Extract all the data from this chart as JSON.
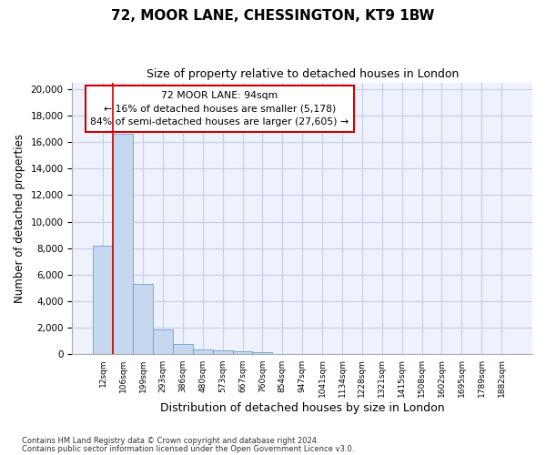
{
  "title": "72, MOOR LANE, CHESSINGTON, KT9 1BW",
  "subtitle": "Size of property relative to detached houses in London",
  "xlabel": "Distribution of detached houses by size in London",
  "ylabel": "Number of detached properties",
  "footnote1": "Contains HM Land Registry data © Crown copyright and database right 2024.",
  "footnote2": "Contains public sector information licensed under the Open Government Licence v3.0.",
  "categories": [
    "12sqm",
    "106sqm",
    "199sqm",
    "293sqm",
    "386sqm",
    "480sqm",
    "573sqm",
    "667sqm",
    "760sqm",
    "854sqm",
    "947sqm",
    "1041sqm",
    "1134sqm",
    "1228sqm",
    "1321sqm",
    "1415sqm",
    "1508sqm",
    "1602sqm",
    "1695sqm",
    "1789sqm",
    "1882sqm"
  ],
  "values": [
    8200,
    16600,
    5300,
    1850,
    800,
    380,
    280,
    220,
    200,
    0,
    0,
    0,
    0,
    0,
    0,
    0,
    0,
    0,
    0,
    0,
    0
  ],
  "bar_color": "#c5d8f0",
  "bar_edge_color": "#5590c8",
  "grid_color": "#c8cce8",
  "background_color": "#eef2fc",
  "vline_color": "#cc0000",
  "annotation_text": "72 MOOR LANE: 94sqm\n← 16% of detached houses are smaller (5,178)\n84% of semi-detached houses are larger (27,605) →",
  "ylim": [
    0,
    20500
  ],
  "yticks": [
    0,
    2000,
    4000,
    6000,
    8000,
    10000,
    12000,
    14000,
    16000,
    18000,
    20000
  ]
}
